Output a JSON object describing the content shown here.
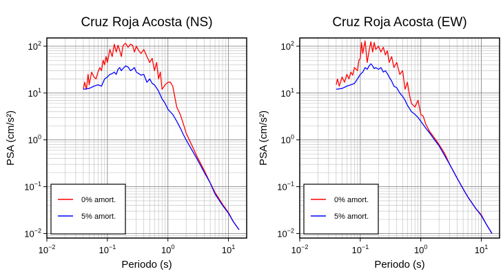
{
  "chart_data": [
    {
      "type": "line",
      "title": "Cruz Roja Acosta (NS)",
      "xlabel": "Periodo (s)",
      "ylabel": "PSA (cm/s²)",
      "x_scale": "log",
      "y_scale": "log",
      "xlim": [
        0.01,
        20
      ],
      "ylim": [
        0.008,
        150
      ],
      "grid": true,
      "legend_position": "bottom-left",
      "x_ticks": [
        {
          "value": 0.01,
          "base": "10",
          "exp": "−2"
        },
        {
          "value": 0.1,
          "base": "10",
          "exp": "−1"
        },
        {
          "value": 1,
          "base": "10",
          "exp": "0"
        },
        {
          "value": 10,
          "base": "10",
          "exp": "1"
        }
      ],
      "y_ticks": [
        {
          "value": 0.01,
          "base": "10",
          "exp": "−2"
        },
        {
          "value": 0.1,
          "base": "10",
          "exp": "−1"
        },
        {
          "value": 1,
          "base": "10",
          "exp": "0"
        },
        {
          "value": 10,
          "base": "10",
          "exp": "1"
        },
        {
          "value": 100,
          "base": "10",
          "exp": "2"
        }
      ],
      "series": [
        {
          "name": "0% amort.",
          "color": "#ff0000",
          "points": [
            [
              0.04,
              12
            ],
            [
              0.042,
              17
            ],
            [
              0.045,
              12
            ],
            [
              0.048,
              25
            ],
            [
              0.05,
              15
            ],
            [
              0.055,
              28
            ],
            [
              0.06,
              22
            ],
            [
              0.065,
              20
            ],
            [
              0.07,
              28
            ],
            [
              0.075,
              35
            ],
            [
              0.08,
              30
            ],
            [
              0.085,
              50
            ],
            [
              0.09,
              40
            ],
            [
              0.095,
              60
            ],
            [
              0.1,
              45
            ],
            [
              0.11,
              85
            ],
            [
              0.12,
              60
            ],
            [
              0.13,
              110
            ],
            [
              0.14,
              75
            ],
            [
              0.15,
              105
            ],
            [
              0.16,
              80
            ],
            [
              0.17,
              60
            ],
            [
              0.18,
              100
            ],
            [
              0.19,
              110
            ],
            [
              0.2,
              115
            ],
            [
              0.22,
              95
            ],
            [
              0.24,
              110
            ],
            [
              0.26,
              105
            ],
            [
              0.28,
              75
            ],
            [
              0.3,
              100
            ],
            [
              0.33,
              80
            ],
            [
              0.36,
              70
            ],
            [
              0.4,
              85
            ],
            [
              0.45,
              60
            ],
            [
              0.5,
              45
            ],
            [
              0.55,
              55
            ],
            [
              0.6,
              30
            ],
            [
              0.65,
              45
            ],
            [
              0.7,
              20
            ],
            [
              0.75,
              28
            ],
            [
              0.8,
              12
            ],
            [
              0.9,
              15
            ],
            [
              1.0,
              17
            ],
            [
              1.1,
              17
            ],
            [
              1.2,
              14
            ],
            [
              1.4,
              5
            ],
            [
              1.6,
              3.5
            ],
            [
              1.8,
              2.2
            ],
            [
              2.0,
              1.4
            ],
            [
              2.5,
              0.75
            ],
            [
              3,
              0.45
            ],
            [
              4,
              0.22
            ],
            [
              5,
              0.12
            ],
            [
              6,
              0.075
            ],
            [
              8,
              0.042
            ],
            [
              10,
              0.028
            ],
            [
              12,
              0.018
            ],
            [
              15,
              0.012
            ]
          ]
        },
        {
          "name": "5% amort.",
          "color": "#0000ff",
          "points": [
            [
              0.04,
              12
            ],
            [
              0.05,
              12.5
            ],
            [
              0.06,
              14
            ],
            [
              0.07,
              15
            ],
            [
              0.08,
              14
            ],
            [
              0.09,
              20
            ],
            [
              0.1,
              22
            ],
            [
              0.11,
              25
            ],
            [
              0.12,
              26
            ],
            [
              0.13,
              28
            ],
            [
              0.14,
              25
            ],
            [
              0.15,
              32
            ],
            [
              0.16,
              35
            ],
            [
              0.17,
              30
            ],
            [
              0.18,
              33
            ],
            [
              0.2,
              38
            ],
            [
              0.22,
              36
            ],
            [
              0.24,
              30
            ],
            [
              0.26,
              32
            ],
            [
              0.28,
              35
            ],
            [
              0.3,
              28
            ],
            [
              0.33,
              26
            ],
            [
              0.36,
              24
            ],
            [
              0.4,
              25
            ],
            [
              0.45,
              17
            ],
            [
              0.5,
              20
            ],
            [
              0.55,
              16
            ],
            [
              0.6,
              15
            ],
            [
              0.7,
              11
            ],
            [
              0.8,
              7.5
            ],
            [
              0.9,
              6
            ],
            [
              1.0,
              4.5
            ],
            [
              1.2,
              3.5
            ],
            [
              1.4,
              2.5
            ],
            [
              1.6,
              1.8
            ],
            [
              1.8,
              1.3
            ],
            [
              2.0,
              1.0
            ],
            [
              2.5,
              0.6
            ],
            [
              3,
              0.4
            ],
            [
              4,
              0.2
            ],
            [
              5,
              0.12
            ],
            [
              6,
              0.07
            ],
            [
              8,
              0.04
            ],
            [
              10,
              0.027
            ],
            [
              12,
              0.018
            ],
            [
              15,
              0.012
            ]
          ]
        }
      ]
    },
    {
      "type": "line",
      "title": "Cruz Roja Acosta (EW)",
      "xlabel": "Periodo (s)",
      "ylabel": "PSA (cm/s²)",
      "x_scale": "log",
      "y_scale": "log",
      "xlim": [
        0.01,
        20
      ],
      "ylim": [
        0.008,
        150
      ],
      "grid": true,
      "legend_position": "bottom-left",
      "x_ticks": [
        {
          "value": 0.01,
          "base": "10",
          "exp": "−2"
        },
        {
          "value": 0.1,
          "base": "10",
          "exp": "−1"
        },
        {
          "value": 1,
          "base": "10",
          "exp": "0"
        },
        {
          "value": 10,
          "base": "10",
          "exp": "1"
        }
      ],
      "y_ticks": [
        {
          "value": 0.01,
          "base": "10",
          "exp": "−2"
        },
        {
          "value": 0.1,
          "base": "10",
          "exp": "−1"
        },
        {
          "value": 1,
          "base": "10",
          "exp": "0"
        },
        {
          "value": 10,
          "base": "10",
          "exp": "1"
        },
        {
          "value": 100,
          "base": "10",
          "exp": "2"
        }
      ],
      "series": [
        {
          "name": "0% amort.",
          "color": "#ff0000",
          "points": [
            [
              0.04,
              15
            ],
            [
              0.042,
              20
            ],
            [
              0.045,
              14
            ],
            [
              0.05,
              22
            ],
            [
              0.055,
              17
            ],
            [
              0.06,
              25
            ],
            [
              0.065,
              20
            ],
            [
              0.07,
              28
            ],
            [
              0.075,
              24
            ],
            [
              0.08,
              35
            ],
            [
              0.09,
              30
            ],
            [
              0.095,
              50
            ],
            [
              0.1,
              55
            ],
            [
              0.105,
              120
            ],
            [
              0.11,
              70
            ],
            [
              0.12,
              130
            ],
            [
              0.13,
              45
            ],
            [
              0.14,
              80
            ],
            [
              0.15,
              125
            ],
            [
              0.16,
              75
            ],
            [
              0.17,
              120
            ],
            [
              0.18,
              85
            ],
            [
              0.2,
              100
            ],
            [
              0.22,
              75
            ],
            [
              0.24,
              95
            ],
            [
              0.26,
              65
            ],
            [
              0.28,
              80
            ],
            [
              0.3,
              45
            ],
            [
              0.33,
              60
            ],
            [
              0.36,
              35
            ],
            [
              0.4,
              45
            ],
            [
              0.45,
              25
            ],
            [
              0.5,
              30
            ],
            [
              0.55,
              12
            ],
            [
              0.6,
              17
            ],
            [
              0.65,
              9
            ],
            [
              0.7,
              6
            ],
            [
              0.8,
              5
            ],
            [
              0.9,
              7
            ],
            [
              1.0,
              3.5
            ],
            [
              1.1,
              3.2
            ],
            [
              1.2,
              2.2
            ],
            [
              1.4,
              1.5
            ],
            [
              1.6,
              1.2
            ],
            [
              2.0,
              0.8
            ],
            [
              2.5,
              0.5
            ],
            [
              3,
              0.3
            ],
            [
              4,
              0.15
            ],
            [
              5,
              0.09
            ],
            [
              6,
              0.06
            ],
            [
              8,
              0.035
            ],
            [
              10,
              0.025
            ],
            [
              12,
              0.016
            ],
            [
              15,
              0.01
            ]
          ]
        },
        {
          "name": "5% amort.",
          "color": "#0000ff",
          "points": [
            [
              0.04,
              12
            ],
            [
              0.05,
              12.5
            ],
            [
              0.06,
              14
            ],
            [
              0.07,
              15
            ],
            [
              0.08,
              16
            ],
            [
              0.09,
              20
            ],
            [
              0.1,
              25
            ],
            [
              0.11,
              28
            ],
            [
              0.12,
              35
            ],
            [
              0.13,
              32
            ],
            [
              0.14,
              38
            ],
            [
              0.15,
              42
            ],
            [
              0.16,
              38
            ],
            [
              0.17,
              33
            ],
            [
              0.18,
              35
            ],
            [
              0.2,
              32
            ],
            [
              0.22,
              35
            ],
            [
              0.24,
              28
            ],
            [
              0.26,
              30
            ],
            [
              0.28,
              26
            ],
            [
              0.3,
              22
            ],
            [
              0.33,
              18
            ],
            [
              0.36,
              14
            ],
            [
              0.4,
              13
            ],
            [
              0.45,
              10
            ],
            [
              0.5,
              8.5
            ],
            [
              0.55,
              7
            ],
            [
              0.6,
              5.5
            ],
            [
              0.7,
              4
            ],
            [
              0.8,
              3.5
            ],
            [
              0.9,
              3
            ],
            [
              1.0,
              2.5
            ],
            [
              1.2,
              1.8
            ],
            [
              1.4,
              1.4
            ],
            [
              1.6,
              1.1
            ],
            [
              2.0,
              0.75
            ],
            [
              2.5,
              0.45
            ],
            [
              3,
              0.3
            ],
            [
              4,
              0.15
            ],
            [
              5,
              0.09
            ],
            [
              6,
              0.06
            ],
            [
              8,
              0.035
            ],
            [
              10,
              0.024
            ],
            [
              12,
              0.016
            ],
            [
              15,
              0.01
            ]
          ]
        }
      ]
    }
  ]
}
